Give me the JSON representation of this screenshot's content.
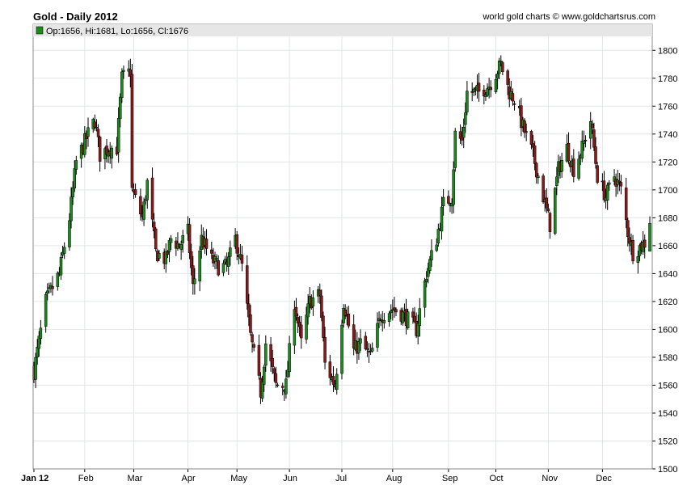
{
  "header": {
    "title": "Gold - Daily 2012",
    "credit": "world gold charts © www.goldchartsrus.com",
    "ohlc_text": "Op:1656, Hi:1681, Lo:1656, Cl:1676"
  },
  "colors": {
    "up": "#1a8a1a",
    "down": "#8b1a1a",
    "grid": "#e2e6ea",
    "legend_bg": "#e6e6e6"
  },
  "chart_data": {
    "type": "candlestick",
    "title": "Gold - Daily 2012",
    "x_tick_labels": [
      "Jan 12",
      "Feb",
      "Mar",
      "Apr",
      "May",
      "Jun",
      "Jul",
      "Aug",
      "Sep",
      "Oct",
      "Nov",
      "Dec"
    ],
    "y_ticks": [
      1500,
      1520,
      1540,
      1560,
      1580,
      1600,
      1620,
      1640,
      1660,
      1680,
      1700,
      1720,
      1740,
      1760,
      1780,
      1800
    ],
    "ylim": [
      1500,
      1810
    ],
    "xlim": [
      "2012-01-02",
      "2012-12-31"
    ],
    "grid": true,
    "close_anchors": [
      [
        "2012-01-02",
        1570
      ],
      [
        "2012-01-09",
        1620
      ],
      [
        "2012-01-17",
        1640
      ],
      [
        "2012-01-23",
        1680
      ],
      [
        "2012-01-27",
        1720
      ],
      [
        "2012-02-03",
        1740
      ],
      [
        "2012-02-07",
        1750
      ],
      [
        "2012-02-10",
        1725
      ],
      [
        "2012-02-15",
        1730
      ],
      [
        "2012-02-20",
        1730
      ],
      [
        "2012-02-23",
        1780
      ],
      [
        "2012-02-28",
        1785
      ],
      [
        "2012-02-29",
        1700
      ],
      [
        "2012-03-06",
        1680
      ],
      [
        "2012-03-09",
        1705
      ],
      [
        "2012-03-14",
        1655
      ],
      [
        "2012-03-20",
        1650
      ],
      [
        "2012-03-23",
        1665
      ],
      [
        "2012-03-28",
        1660
      ],
      [
        "2012-04-02",
        1670
      ],
      [
        "2012-04-05",
        1630
      ],
      [
        "2012-04-10",
        1665
      ],
      [
        "2012-04-16",
        1650
      ],
      [
        "2012-04-20",
        1645
      ],
      [
        "2012-04-25",
        1645
      ],
      [
        "2012-04-30",
        1665
      ],
      [
        "2012-05-04",
        1645
      ],
      [
        "2012-05-09",
        1595
      ],
      [
        "2012-05-15",
        1555
      ],
      [
        "2012-05-18",
        1590
      ],
      [
        "2012-05-24",
        1560
      ],
      [
        "2012-05-30",
        1560
      ],
      [
        "2012-06-04",
        1620
      ],
      [
        "2012-06-08",
        1590
      ],
      [
        "2012-06-13",
        1620
      ],
      [
        "2012-06-19",
        1625
      ],
      [
        "2012-06-22",
        1575
      ],
      [
        "2012-06-28",
        1560
      ],
      [
        "2012-07-03",
        1620
      ],
      [
        "2012-07-09",
        1585
      ],
      [
        "2012-07-13",
        1590
      ],
      [
        "2012-07-19",
        1580
      ],
      [
        "2012-07-25",
        1610
      ],
      [
        "2012-08-01",
        1615
      ],
      [
        "2012-08-08",
        1610
      ],
      [
        "2012-08-15",
        1600
      ],
      [
        "2012-08-21",
        1640
      ],
      [
        "2012-08-27",
        1665
      ],
      [
        "2012-08-31",
        1690
      ],
      [
        "2012-09-05",
        1695
      ],
      [
        "2012-09-07",
        1740
      ],
      [
        "2012-09-11",
        1735
      ],
      [
        "2012-09-14",
        1770
      ],
      [
        "2012-09-21",
        1770
      ],
      [
        "2012-09-27",
        1775
      ],
      [
        "2012-10-04",
        1790
      ],
      [
        "2012-10-09",
        1770
      ],
      [
        "2012-10-12",
        1765
      ],
      [
        "2012-10-17",
        1745
      ],
      [
        "2012-10-23",
        1725
      ],
      [
        "2012-10-26",
        1710
      ],
      [
        "2012-11-02",
        1675
      ],
      [
        "2012-11-07",
        1715
      ],
      [
        "2012-11-12",
        1730
      ],
      [
        "2012-11-16",
        1715
      ],
      [
        "2012-11-21",
        1730
      ],
      [
        "2012-11-26",
        1750
      ],
      [
        "2012-11-30",
        1710
      ],
      [
        "2012-12-05",
        1695
      ],
      [
        "2012-12-10",
        1710
      ],
      [
        "2012-12-14",
        1700
      ],
      [
        "2012-12-18",
        1670
      ],
      [
        "2012-12-21",
        1655
      ],
      [
        "2012-12-28",
        1662
      ],
      [
        "2012-12-31",
        1676
      ]
    ]
  }
}
